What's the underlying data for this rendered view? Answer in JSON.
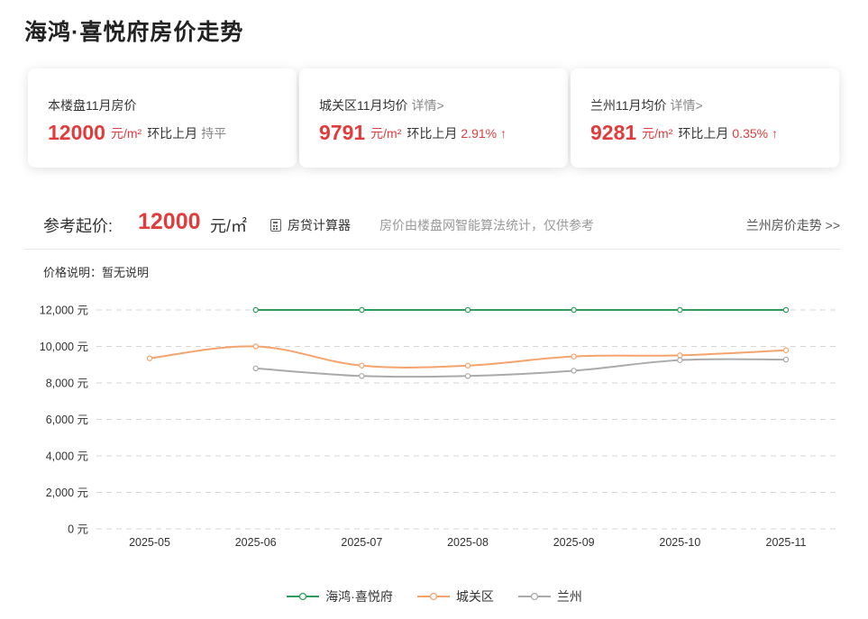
{
  "page": {
    "title": "海鸿·喜悦府房价走势"
  },
  "cards": [
    {
      "label": "本楼盘11月房价",
      "link": "",
      "value": "12000",
      "unit": "元/m²",
      "compare": "环比上月",
      "change": "持平",
      "change_kind": "flat"
    },
    {
      "label": "城关区11月均价",
      "link": "详情>",
      "value": "9791",
      "unit": "元/m²",
      "compare": "环比上月",
      "change": "2.91% ↑",
      "change_kind": "up"
    },
    {
      "label": "兰州11月均价",
      "link": "详情>",
      "value": "9281",
      "unit": "元/m²",
      "compare": "环比上月",
      "change": "0.35% ↑",
      "change_kind": "up"
    }
  ],
  "ref": {
    "label": "参考起价:",
    "value": "12000",
    "unit": "元/㎡",
    "calculator": "房贷计算器",
    "disclaimer": "房价由楼盘网智能算法统计，仅供参考",
    "trend_link": "兰州房价走势 >>"
  },
  "price_note": "价格说明：暂无说明",
  "chart_data": {
    "type": "line",
    "categories": [
      "2025-05",
      "2025-06",
      "2025-07",
      "2025-08",
      "2025-09",
      "2025-10",
      "2025-11"
    ],
    "y_ticks": [
      "0 元",
      "2,000 元",
      "4,000 元",
      "6,000 元",
      "8,000 元",
      "10,000 元",
      "12,000 元"
    ],
    "ylim": [
      0,
      12000
    ],
    "grid": true,
    "legend_position": "bottom",
    "series": [
      {
        "name": "海鸿·喜悦府",
        "color": "#2e9c5c",
        "values": [
          null,
          12000,
          12000,
          12000,
          12000,
          12000,
          12000
        ]
      },
      {
        "name": "城关区",
        "color": "#f5a36c",
        "values": [
          9350,
          10000,
          8950,
          8950,
          9450,
          9514,
          9791
        ]
      },
      {
        "name": "兰州",
        "color": "#aaaaaa",
        "values": [
          null,
          8800,
          8380,
          8380,
          8670,
          9250,
          9281
        ]
      }
    ]
  }
}
